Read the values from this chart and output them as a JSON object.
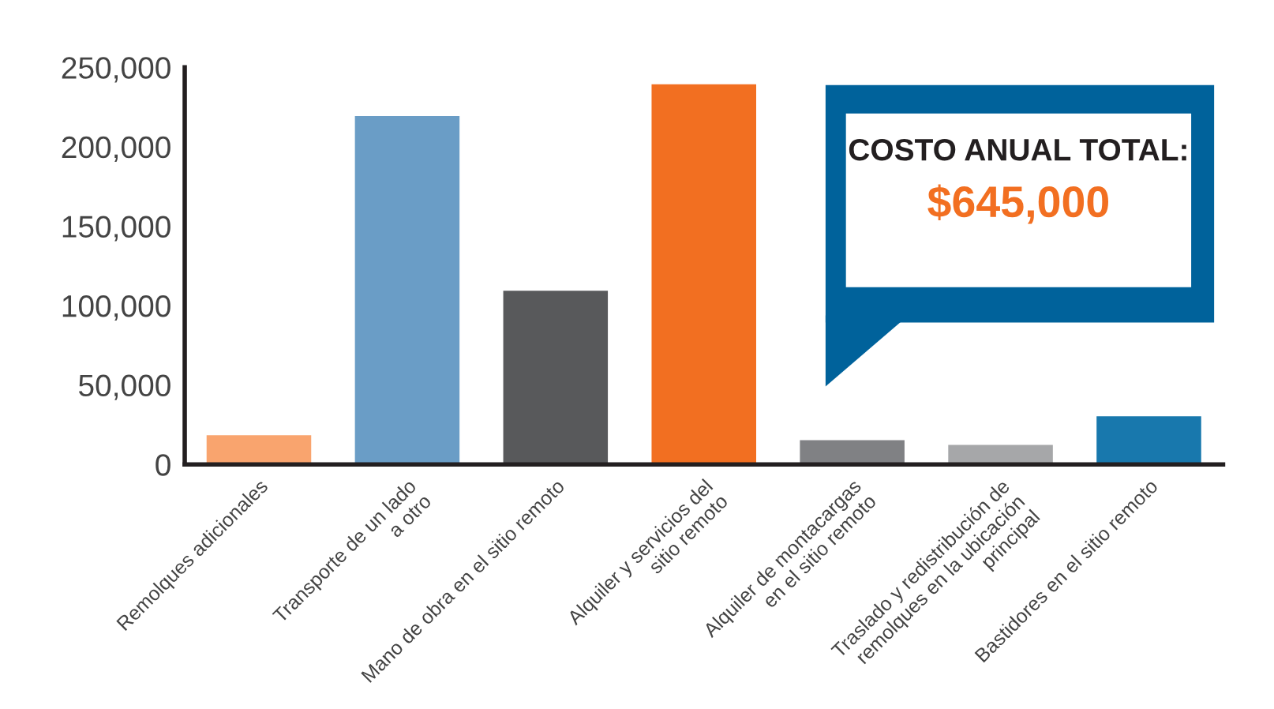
{
  "chart_data": {
    "type": "bar",
    "categories": [
      "Remolques adicionales",
      "Transporte de un lado\na otro",
      "Mano de obra en el sitio remoto",
      "Alquiler y servicios del\nsitio remoto",
      "Alquiler de montacargas\nen el sitio remoto",
      "Traslado y redistribución de\nremolques en la ubicación\nprincipal",
      "Bastidores en el sitio remoto"
    ],
    "values": [
      19000,
      220000,
      110000,
      240000,
      16000,
      13000,
      31000
    ],
    "colors": [
      "#f9a46e",
      "#6a9dc6",
      "#58595b",
      "#f26f21",
      "#808184",
      "#a6a7a9",
      "#1878ad"
    ],
    "ylim": [
      0,
      250000
    ],
    "yticks": [
      0,
      {
        "value": 50000,
        "label": "50,000"
      },
      {
        "value": 100000,
        "label": "100,000"
      },
      {
        "value": 150000,
        "label": "150,000"
      },
      {
        "value": 200000,
        "label": "200,000"
      },
      {
        "value": 250000,
        "label": "250,000"
      }
    ],
    "grid": false,
    "legend": false,
    "annotations": [
      "COSTO ANUAL TOTAL:",
      "$645,000"
    ]
  }
}
